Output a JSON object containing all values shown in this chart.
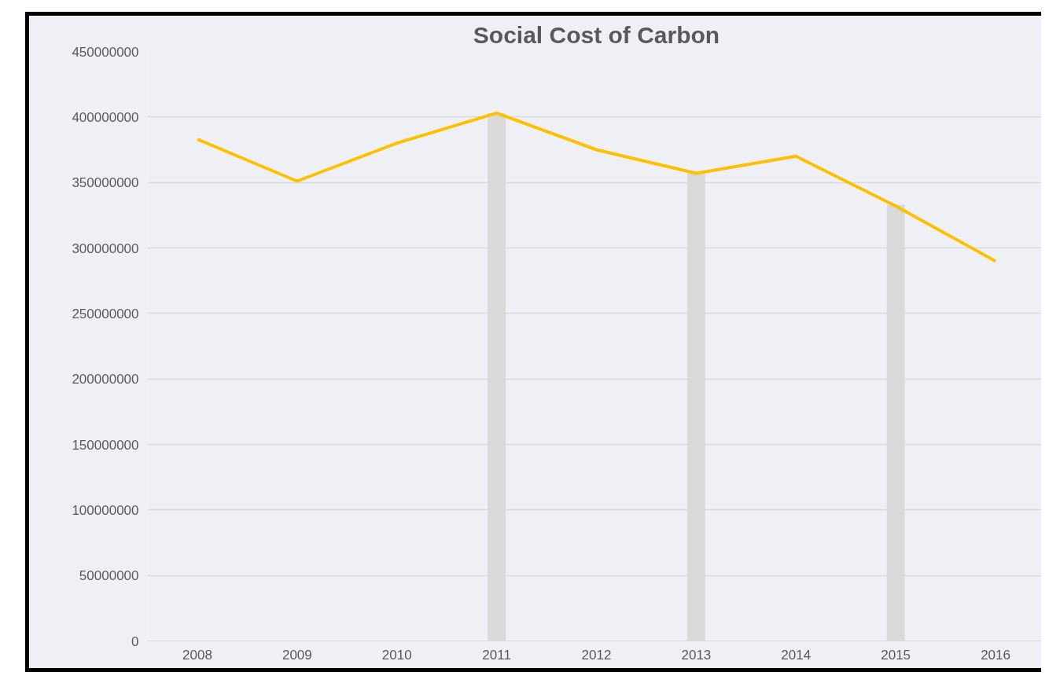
{
  "chart_data": {
    "type": "line",
    "title": "Social Cost of Carbon",
    "categories": [
      "2008",
      "2009",
      "2010",
      "2011",
      "2012",
      "2013",
      "2014",
      "2015",
      "2016"
    ],
    "series": [
      {
        "type": "bar",
        "color": "#d9d9d9",
        "values": [
          null,
          null,
          null,
          403000000,
          null,
          357000000,
          null,
          333000000,
          null
        ]
      },
      {
        "color": "#ffc000",
        "values": [
          383000000,
          351000000,
          380000000,
          403000000,
          375000000,
          357000000,
          370000000,
          332000000,
          290000000
        ]
      }
    ],
    "ylim": [
      0,
      450000000
    ],
    "yticks": [
      0,
      50000000,
      100000000,
      150000000,
      200000000,
      250000000,
      300000000,
      350000000,
      400000000,
      450000000
    ],
    "grid": "y"
  }
}
